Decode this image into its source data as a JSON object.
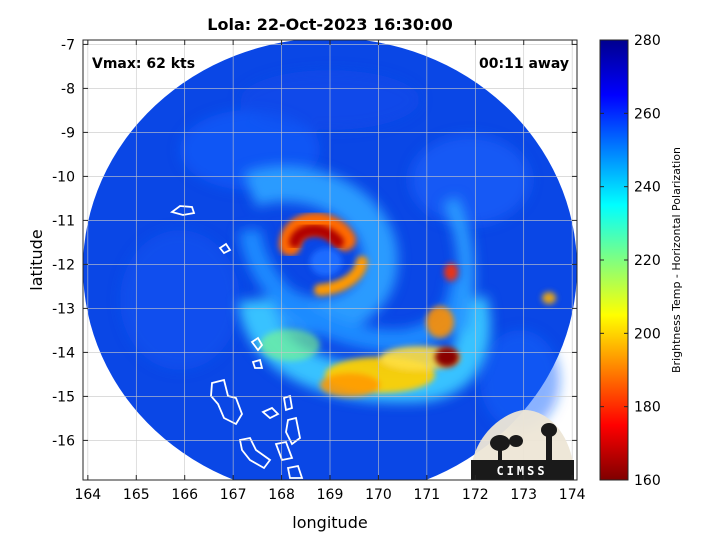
{
  "chart_data": {
    "type": "heatmap",
    "title": "Lola: 22-Oct-2023 16:30:00",
    "xlabel": "longitude",
    "ylabel": "latitude",
    "xlim": [
      163.9,
      174.1
    ],
    "ylim": [
      -16.9,
      -6.9
    ],
    "x_ticks": [
      "164",
      "165",
      "166",
      "167",
      "168",
      "169",
      "170",
      "171",
      "172",
      "173",
      "174"
    ],
    "y_ticks": [
      "-7",
      "-8",
      "-9",
      "-10",
      "-11",
      "-12",
      "-13",
      "-14",
      "-15",
      "-16"
    ],
    "grid": true,
    "annotations": {
      "vmax": "Vmax: 62 kts",
      "time_away": "00:11 away"
    },
    "colorbar": {
      "label": "Brightness Temp - Horizontal Polarization",
      "min": 160,
      "max": 280,
      "ticks": [
        "160",
        "180",
        "200",
        "220",
        "240",
        "260",
        "280"
      ],
      "colors": [
        "#7f0000",
        "#ff0000",
        "#ff8000",
        "#ffff00",
        "#80ff80",
        "#00ffff",
        "#0080ff",
        "#0000ff",
        "#00008f"
      ]
    },
    "swath": {
      "center_lon": 168.9,
      "center_lat": -11.65,
      "radius_deg": 5.05
    },
    "storm_center": {
      "lon": 169.0,
      "lat": -11.9
    },
    "features": [
      {
        "type": "eyewall_max",
        "lon": 168.7,
        "lat": -11.4,
        "value": 168
      },
      {
        "type": "rainband_max",
        "lon": 171.5,
        "lat": -14.1,
        "value": 162
      },
      {
        "type": "rainband",
        "lon": 170.0,
        "lat": -14.6,
        "value": 200
      },
      {
        "type": "rainband",
        "lon": 171.4,
        "lat": -12.2,
        "value": 190
      }
    ],
    "logo": "CIMSS"
  }
}
